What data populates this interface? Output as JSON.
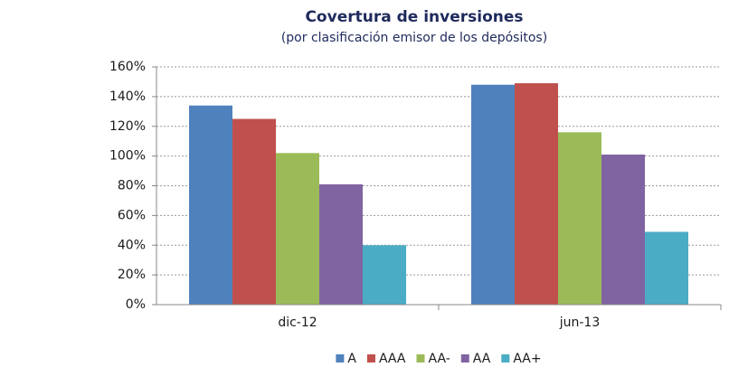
{
  "chart_data": {
    "type": "bar",
    "title": "Covertura de inversiones",
    "subtitle": "(por clasificación emisor de los depósitos)",
    "categories": [
      "dic-12",
      "jun-13"
    ],
    "series": [
      {
        "name": "A",
        "color": "#4f81bd",
        "values": [
          134,
          148
        ]
      },
      {
        "name": "AAA",
        "color": "#c0504d",
        "values": [
          125,
          149
        ]
      },
      {
        "name": "AA-",
        "color": "#9bbb59",
        "values": [
          102,
          116
        ]
      },
      {
        "name": "AA",
        "color": "#8064a2",
        "values": [
          81,
          101
        ]
      },
      {
        "name": "AA+",
        "color": "#4bacc6",
        "values": [
          40,
          49
        ]
      }
    ],
    "ylim": [
      0,
      160
    ],
    "yticks": [
      {
        "value": 0,
        "label": "0%"
      },
      {
        "value": 20,
        "label": "20%"
      },
      {
        "value": 40,
        "label": "40%"
      },
      {
        "value": 60,
        "label": "60%"
      },
      {
        "value": 80,
        "label": "80%"
      },
      {
        "value": 100,
        "label": "100%"
      },
      {
        "value": 120,
        "label": "120%"
      },
      {
        "value": 140,
        "label": "140%"
      },
      {
        "value": 160,
        "label": "160%"
      }
    ],
    "grid": true,
    "legend": "bottom"
  }
}
